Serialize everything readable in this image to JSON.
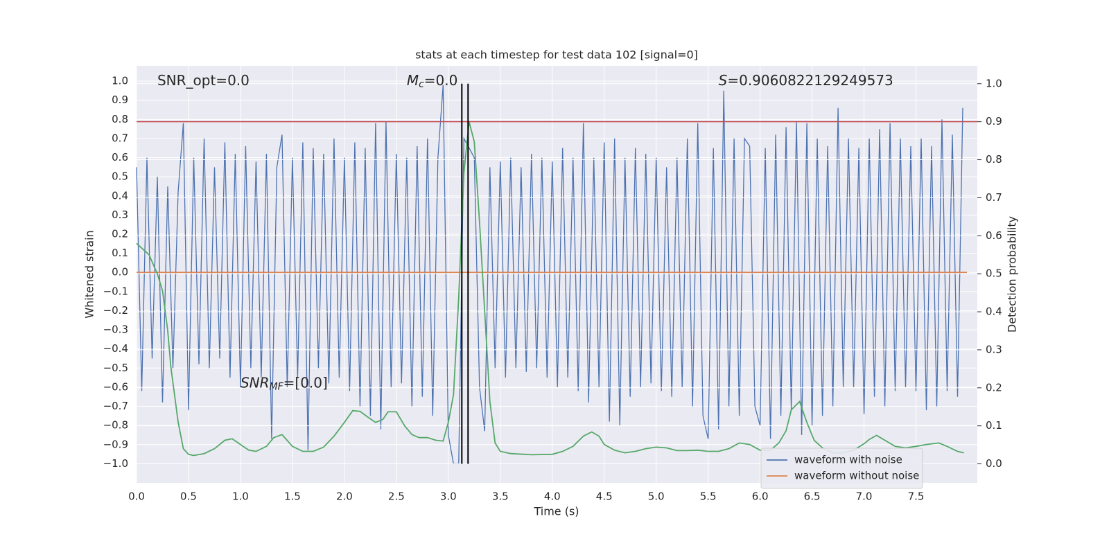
{
  "chart_data": {
    "type": "line",
    "title": "stats at each timestep for test data 102 [signal=0]",
    "x_label": "Time (s)",
    "y_label": "Whitened strain",
    "y2_label": "Detection probability",
    "background": "#eaeaf2",
    "grid": true,
    "legend": "lower right",
    "xlim": [
      0,
      8.09
    ],
    "ylim": [
      -1.1,
      1.08
    ],
    "y2lim": [
      -0.05,
      1.047
    ],
    "xticks": [
      {
        "value": 0,
        "label": "0.0"
      },
      {
        "value": 0.5,
        "label": "0.5"
      },
      {
        "value": 1,
        "label": "1.0"
      },
      {
        "value": 1.5,
        "label": "1.5"
      },
      {
        "value": 2,
        "label": "2.0"
      },
      {
        "value": 2.5,
        "label": "2.5"
      },
      {
        "value": 3,
        "label": "3.0"
      },
      {
        "value": 3.5,
        "label": "3.5"
      },
      {
        "value": 4,
        "label": "4.0"
      },
      {
        "value": 4.5,
        "label": "4.5"
      },
      {
        "value": 5,
        "label": "5.0"
      },
      {
        "value": 5.5,
        "label": "5.5"
      },
      {
        "value": 6,
        "label": "6.0"
      },
      {
        "value": 6.5,
        "label": "6.5"
      },
      {
        "value": 7,
        "label": "7.0"
      },
      {
        "value": 7.5,
        "label": "7.5"
      }
    ],
    "yticks": [
      {
        "value": -1,
        "label": "−1.0"
      },
      {
        "value": -0.9,
        "label": "−0.9"
      },
      {
        "value": -0.8,
        "label": "−0.8"
      },
      {
        "value": -0.7,
        "label": "−0.7"
      },
      {
        "value": -0.6,
        "label": "−0.6"
      },
      {
        "value": -0.5,
        "label": "−0.5"
      },
      {
        "value": -0.4,
        "label": "−0.4"
      },
      {
        "value": -0.3,
        "label": "−0.3"
      },
      {
        "value": -0.2,
        "label": "−0.2"
      },
      {
        "value": -0.1,
        "label": "−0.1"
      },
      {
        "value": 0,
        "label": "0.0"
      },
      {
        "value": 0.1,
        "label": "0.1"
      },
      {
        "value": 0.2,
        "label": "0.2"
      },
      {
        "value": 0.3,
        "label": "0.3"
      },
      {
        "value": 0.4,
        "label": "0.4"
      },
      {
        "value": 0.5,
        "label": "0.5"
      },
      {
        "value": 0.6,
        "label": "0.6"
      },
      {
        "value": 0.7,
        "label": "0.7"
      },
      {
        "value": 0.8,
        "label": "0.8"
      },
      {
        "value": 0.9,
        "label": "0.9"
      },
      {
        "value": 1,
        "label": "1.0"
      }
    ],
    "y2ticks": [
      {
        "value": 0,
        "label": "0.0"
      },
      {
        "value": 0.1,
        "label": "0.1"
      },
      {
        "value": 0.2,
        "label": "0.2"
      },
      {
        "value": 0.3,
        "label": "0.3"
      },
      {
        "value": 0.4,
        "label": "0.4"
      },
      {
        "value": 0.5,
        "label": "0.5"
      },
      {
        "value": 0.6,
        "label": "0.6"
      },
      {
        "value": 0.7,
        "label": "0.7"
      },
      {
        "value": 0.8,
        "label": "0.8"
      },
      {
        "value": 0.9,
        "label": "0.9"
      },
      {
        "value": 1,
        "label": "1.0"
      }
    ],
    "series": [
      {
        "name": "waveform with noise",
        "color": "#4c72b0",
        "in_legend": true,
        "x": [
          0,
          0.05,
          0.1,
          0.15,
          0.2,
          0.25,
          0.3,
          0.35,
          0.4,
          0.45,
          0.5,
          0.55,
          0.6,
          0.65,
          0.7,
          0.75,
          0.8,
          0.85,
          0.9,
          0.95,
          1,
          1.05,
          1.1,
          1.15,
          1.2,
          1.25,
          1.3,
          1.35,
          1.4,
          1.45,
          1.5,
          1.55,
          1.6,
          1.65,
          1.7,
          1.75,
          1.8,
          1.85,
          1.9,
          1.95,
          2,
          2.05,
          2.1,
          2.15,
          2.2,
          2.25,
          2.3,
          2.35,
          2.4,
          2.45,
          2.5,
          2.55,
          2.6,
          2.65,
          2.7,
          2.75,
          2.8,
          2.85,
          2.9,
          2.95,
          3,
          3.05,
          3.1,
          3.15,
          3.2,
          3.25,
          3.3,
          3.35,
          3.4,
          3.45,
          3.5,
          3.55,
          3.6,
          3.65,
          3.7,
          3.75,
          3.8,
          3.85,
          3.9,
          3.95,
          4,
          4.05,
          4.1,
          4.15,
          4.2,
          4.25,
          4.3,
          4.35,
          4.4,
          4.45,
          4.5,
          4.55,
          4.6,
          4.65,
          4.7,
          4.75,
          4.8,
          4.85,
          4.9,
          4.95,
          5,
          5.05,
          5.1,
          5.15,
          5.2,
          5.25,
          5.3,
          5.35,
          5.4,
          5.45,
          5.5,
          5.55,
          5.6,
          5.65,
          5.7,
          5.75,
          5.8,
          5.85,
          5.9,
          5.95,
          6,
          6.05,
          6.1,
          6.15,
          6.2,
          6.25,
          6.3,
          6.35,
          6.4,
          6.45,
          6.5,
          6.55,
          6.6,
          6.65,
          6.7,
          6.75,
          6.8,
          6.85,
          6.9,
          6.95,
          7,
          7.05,
          7.1,
          7.15,
          7.2,
          7.25,
          7.3,
          7.35,
          7.4,
          7.45,
          7.5,
          7.55,
          7.6,
          7.65,
          7.7,
          7.75,
          7.8,
          7.85,
          7.9,
          7.95
        ],
        "values": [
          0.55,
          -0.62,
          0.6,
          -0.45,
          0.5,
          -0.68,
          0.45,
          -0.5,
          0.42,
          0.78,
          -0.72,
          0.6,
          -0.48,
          0.7,
          -0.5,
          0.55,
          -0.45,
          0.68,
          -0.55,
          0.62,
          -0.6,
          0.66,
          -0.5,
          0.58,
          -0.55,
          0.62,
          -0.87,
          0.55,
          0.72,
          -0.6,
          0.6,
          -0.55,
          0.68,
          -0.93,
          0.65,
          -0.5,
          0.62,
          -0.58,
          0.7,
          -0.55,
          0.6,
          -0.62,
          0.68,
          -0.7,
          0.65,
          -0.75,
          0.78,
          -0.82,
          0.79,
          -0.6,
          0.62,
          -0.58,
          0.6,
          -0.7,
          0.66,
          -0.65,
          0.7,
          -0.75,
          0.6,
          0.98,
          -0.85,
          -1.0,
          -1.0,
          0.7,
          0.65,
          0.6,
          -0.6,
          -0.83,
          0.55,
          -0.5,
          0.58,
          -0.55,
          0.6,
          -0.5,
          0.55,
          -0.52,
          0.62,
          -0.5,
          0.6,
          -0.55,
          0.58,
          -0.6,
          0.65,
          -0.55,
          0.6,
          -0.62,
          0.78,
          -0.68,
          0.6,
          -0.6,
          0.68,
          -0.78,
          0.7,
          -0.8,
          0.6,
          -0.65,
          0.65,
          -0.6,
          0.62,
          -0.58,
          0.6,
          -0.62,
          0.55,
          -0.65,
          0.6,
          -0.6,
          0.7,
          -0.7,
          0.78,
          -0.75,
          -0.87,
          0.65,
          -0.82,
          0.95,
          -0.7,
          0.7,
          -0.75,
          0.7,
          0.66,
          -0.7,
          -0.8,
          0.65,
          -0.87,
          0.72,
          -0.75,
          0.76,
          -0.72,
          0.79,
          -0.85,
          0.78,
          -0.8,
          0.7,
          -0.75,
          0.66,
          -0.7,
          0.86,
          -0.6,
          0.7,
          -0.6,
          0.65,
          -0.74,
          0.7,
          -0.65,
          0.75,
          -0.7,
          0.78,
          -0.62,
          0.7,
          -0.6,
          0.66,
          -0.62,
          0.7,
          -0.72,
          0.66,
          -0.7,
          0.8,
          -0.62,
          0.72,
          -0.65,
          0.86
        ]
      },
      {
        "name": "waveform without noise",
        "color": "#dd8452",
        "in_legend": true,
        "x": [
          0,
          7.99
        ],
        "values": [
          0,
          0
        ]
      },
      {
        "name": "detection probability",
        "color": "#55a868",
        "axis": "y2",
        "in_legend": false,
        "x": [
          0,
          0.12,
          0.2,
          0.25,
          0.3,
          0.33,
          0.4,
          0.45,
          0.5,
          0.55,
          0.65,
          0.75,
          0.85,
          0.92,
          1,
          1.08,
          1.15,
          1.25,
          1.32,
          1.4,
          1.5,
          1.6,
          1.7,
          1.8,
          1.9,
          2,
          2.08,
          2.15,
          2.22,
          2.3,
          2.37,
          2.42,
          2.5,
          2.58,
          2.65,
          2.72,
          2.8,
          2.88,
          2.95,
          3,
          3.05,
          3.1,
          3.15,
          3.2,
          3.25,
          3.3,
          3.35,
          3.4,
          3.45,
          3.5,
          3.6,
          3.8,
          4,
          4.1,
          4.2,
          4.3,
          4.38,
          4.45,
          4.5,
          4.6,
          4.7,
          4.8,
          4.9,
          5,
          5.1,
          5.2,
          5.3,
          5.4,
          5.5,
          5.6,
          5.7,
          5.8,
          5.9,
          6,
          6.1,
          6.18,
          6.25,
          6.3,
          6.38,
          6.45,
          6.52,
          6.6,
          6.7,
          6.8,
          6.9,
          7,
          7.05,
          7.12,
          7.2,
          7.3,
          7.4,
          7.5,
          7.6,
          7.72,
          7.8,
          7.9,
          7.96
        ],
        "values": [
          0.58,
          0.55,
          0.5,
          0.455,
          0.35,
          0.255,
          0.11,
          0.04,
          0.025,
          0.022,
          0.027,
          0.04,
          0.062,
          0.066,
          0.051,
          0.036,
          0.033,
          0.046,
          0.069,
          0.077,
          0.046,
          0.033,
          0.033,
          0.044,
          0.073,
          0.109,
          0.14,
          0.138,
          0.124,
          0.109,
          0.117,
          0.137,
          0.137,
          0.1,
          0.077,
          0.069,
          0.069,
          0.062,
          0.06,
          0.109,
          0.182,
          0.437,
          0.765,
          0.9,
          0.847,
          0.637,
          0.4,
          0.164,
          0.055,
          0.033,
          0.027,
          0.024,
          0.025,
          0.033,
          0.046,
          0.073,
          0.084,
          0.073,
          0.051,
          0.036,
          0.029,
          0.033,
          0.04,
          0.044,
          0.042,
          0.035,
          0.035,
          0.036,
          0.033,
          0.033,
          0.04,
          0.055,
          0.051,
          0.036,
          0.036,
          0.055,
          0.087,
          0.142,
          0.164,
          0.109,
          0.062,
          0.042,
          0.029,
          0.029,
          0.036,
          0.053,
          0.064,
          0.075,
          0.062,
          0.046,
          0.042,
          0.046,
          0.051,
          0.055,
          0.046,
          0.033,
          0.029
        ]
      }
    ],
    "threshold": {
      "value": 0.9,
      "axis": "y2",
      "color": "#c44e52"
    },
    "vlines": {
      "x": [
        3.13,
        3.19
      ],
      "ymin": 0,
      "ymax": 1,
      "axis": "y2",
      "color": "#000000"
    },
    "annotations": [
      {
        "x": 0.2,
        "y": 1.0,
        "parts": [
          {
            "text": "SNR_opt=0.0"
          }
        ]
      },
      {
        "x": 2.6,
        "y": 1.0,
        "parts": [
          {
            "text": "M",
            "style": "italic"
          },
          {
            "text": "c",
            "style": "sub"
          },
          {
            "text": "=0.0"
          }
        ]
      },
      {
        "x": 5.6,
        "y": 1.0,
        "parts": [
          {
            "text": "S",
            "style": "italic"
          },
          {
            "text": "=0.9060822129249573"
          }
        ]
      },
      {
        "x": 1.0,
        "y": -0.58,
        "parts": [
          {
            "text": "SNR",
            "style": "italic"
          },
          {
            "text": "MF",
            "style": "sub"
          },
          {
            "text": "=[0.0]"
          }
        ]
      }
    ]
  }
}
